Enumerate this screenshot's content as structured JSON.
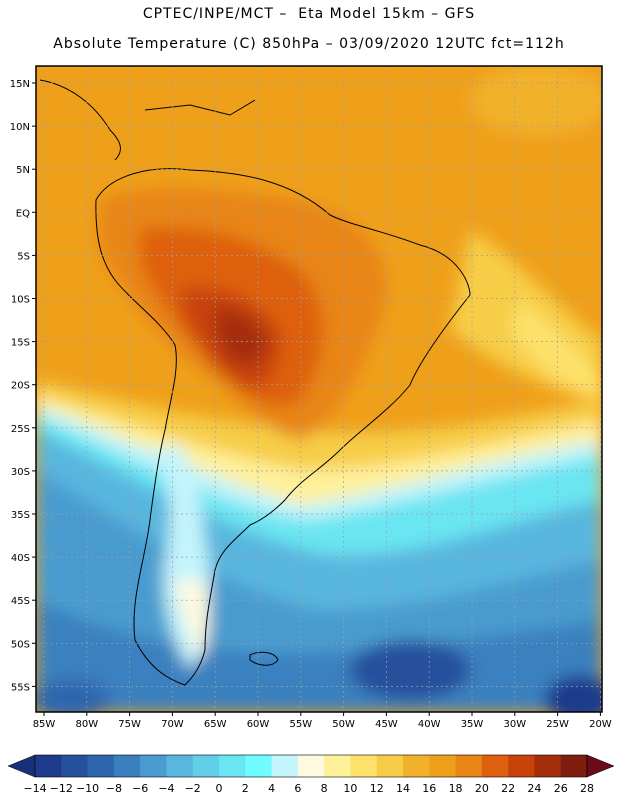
{
  "header": {
    "line1": "CPTEC/INPE/MCT –  Eta Model 15km – GFS",
    "line2": "Absolute Temperature (C) 850hPa – 03/09/2020 12UTC fct=112h"
  },
  "axes": {
    "lat_labels": [
      "15N",
      "10N",
      "5N",
      "EQ",
      "5S",
      "10S",
      "15S",
      "20S",
      "25S",
      "30S",
      "35S",
      "40S",
      "45S",
      "50S",
      "55S"
    ],
    "lon_labels": [
      "85W",
      "80W",
      "75W",
      "70W",
      "65W",
      "60W",
      "55W",
      "50W",
      "45W",
      "40W",
      "35W",
      "30W",
      "25W",
      "20W"
    ]
  },
  "colorbar": {
    "labels": [
      "-14",
      "-12",
      "-10",
      "-8",
      "-6",
      "-4",
      "-2",
      "0",
      "2",
      "4",
      "6",
      "8",
      "10",
      "12",
      "14",
      "16",
      "18",
      "20",
      "22",
      "24",
      "26",
      "28"
    ],
    "colors": [
      "#1e3a8c",
      "#25509c",
      "#2d66ae",
      "#3a80bf",
      "#4a9bcf",
      "#59b6de",
      "#62cfe8",
      "#6ae5f2",
      "#6ffbff",
      "#c4f4fc",
      "#fff9e0",
      "#fff09a",
      "#fde16a",
      "#f7cd47",
      "#f2b12a",
      "#efa01b",
      "#e88516",
      "#de600e",
      "#c8430a",
      "#a52f0b",
      "#7f1d0e"
    ],
    "under_color": "#1a2f7a",
    "over_color": "#6b0a18"
  }
}
